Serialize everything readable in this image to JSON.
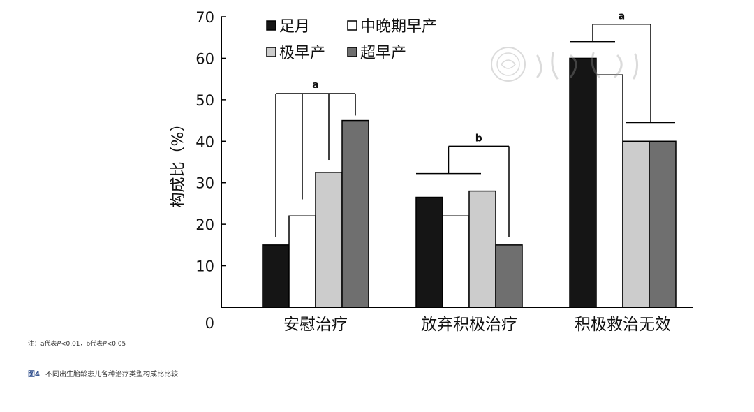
{
  "chart_data": {
    "type": "bar",
    "ylabel": "构成比（%）",
    "ylim": [
      0,
      70
    ],
    "yticks": [
      0,
      10,
      20,
      30,
      40,
      50,
      60,
      70
    ],
    "categories": [
      "安慰治疗",
      "放弃积极治疗",
      "积极救治无效"
    ],
    "legend_position": "top-left",
    "grid": false,
    "series": [
      {
        "name": "足月",
        "color": "#151515",
        "values": [
          15,
          26.5,
          60
        ]
      },
      {
        "name": "中晚期早产",
        "color": "#ffffff",
        "values": [
          22,
          22,
          56
        ]
      },
      {
        "name": "极早产",
        "color": "#cccccc",
        "values": [
          32.5,
          28,
          40
        ]
      },
      {
        "name": "超早产",
        "color": "#6f6f6f",
        "values": [
          45,
          15,
          40
        ]
      }
    ],
    "annotations": [
      "a",
      "b",
      "a"
    ]
  },
  "note": {
    "prefix": "注：a代表",
    "p1": "P",
    "middle": "<0.01，b代表",
    "p2": "P",
    "suffix": "<0.05"
  },
  "caption": {
    "figure_label": "图4",
    "text": "不同出生胎龄患儿各种治疗类型构成比比较"
  },
  "watermark": {
    "text": "中华医学会"
  }
}
